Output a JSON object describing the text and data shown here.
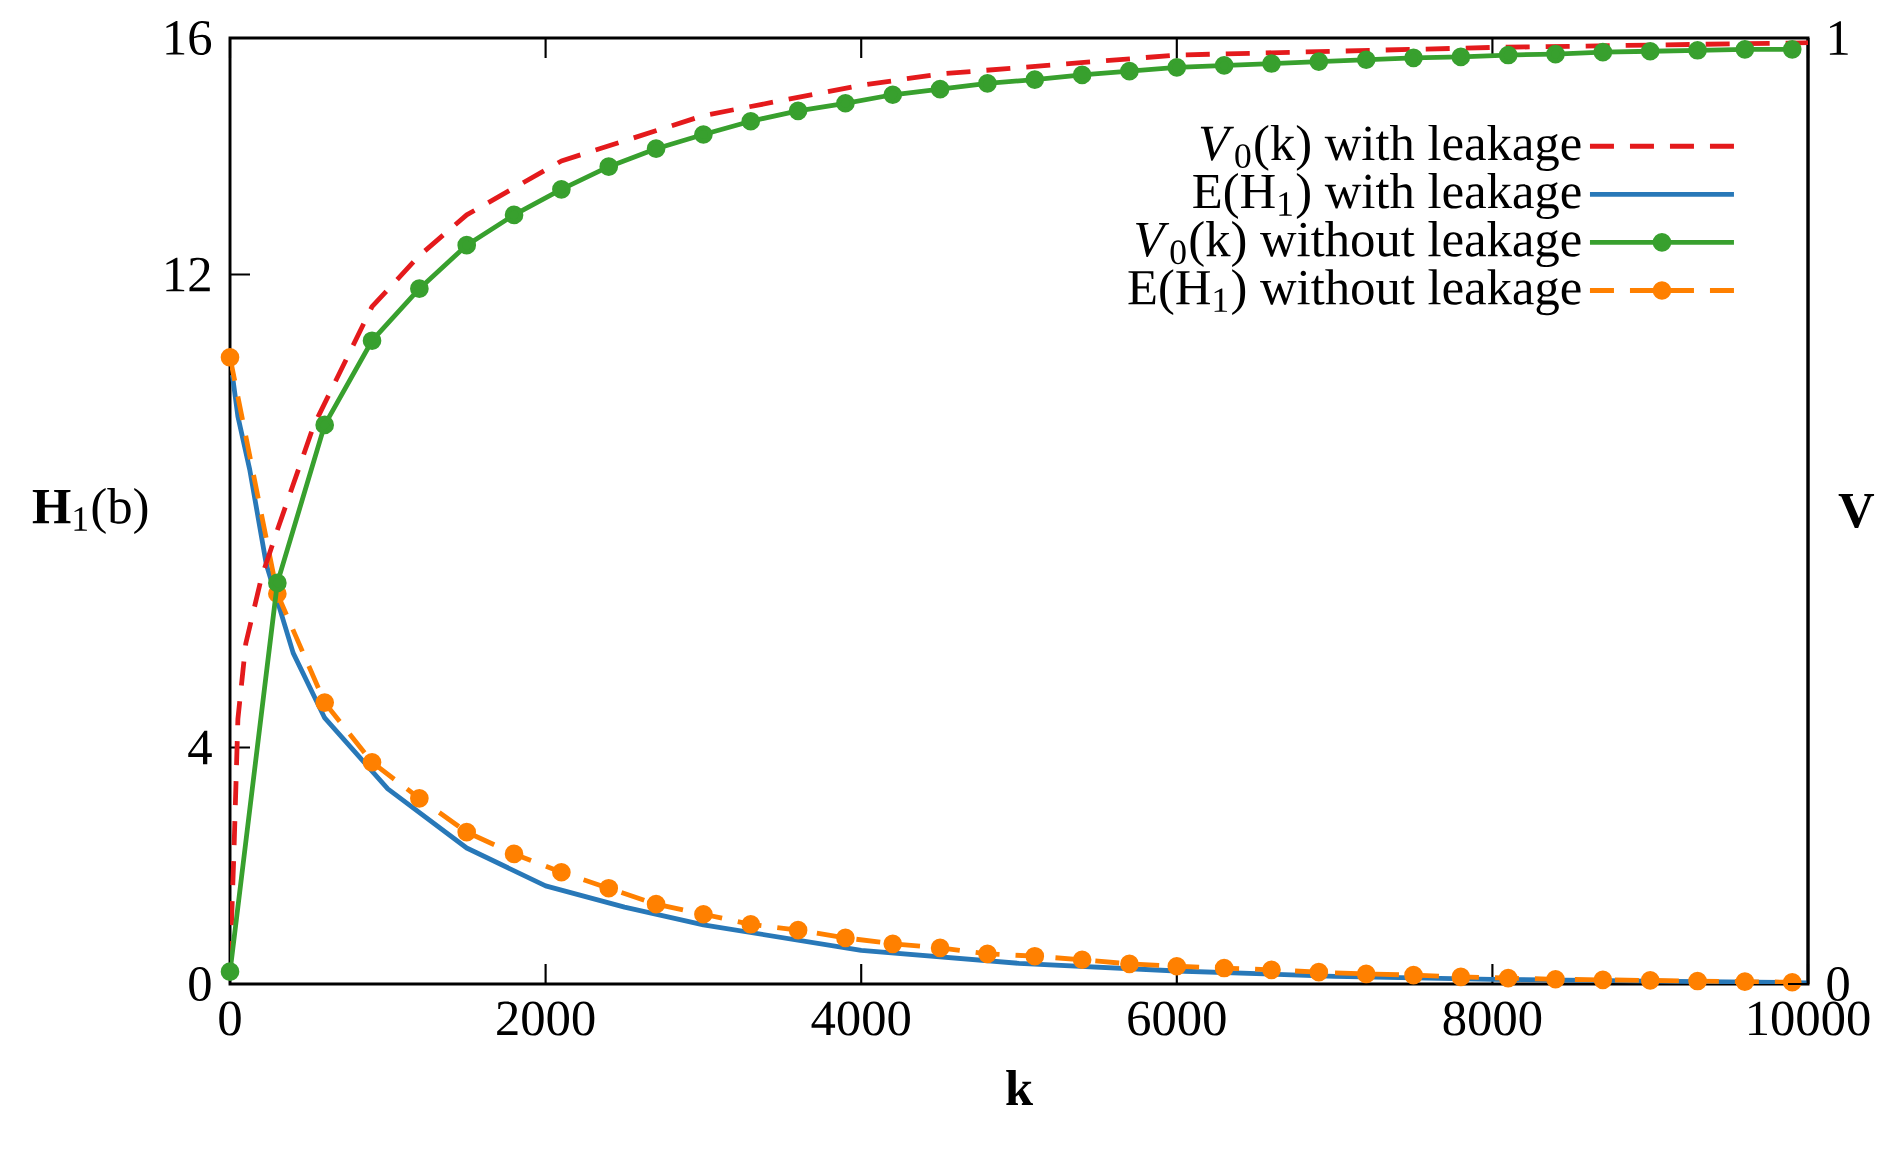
{
  "chart_data": {
    "type": "line",
    "xlabel": "k",
    "ylabel": "**H**$_{1}$(b)",
    "y2label": "V",
    "xlim": [
      0,
      10000
    ],
    "xticks": [
      0,
      2000,
      4000,
      6000,
      8000,
      10000
    ],
    "ylim": [
      0,
      16
    ],
    "yticks": [
      0,
      4,
      12,
      16
    ],
    "y2lim": [
      0,
      1
    ],
    "y2ticks": [
      0,
      1
    ],
    "legend": "top right",
    "series": [
      {
        "name": "*V*$_{0}$(k) with leakage",
        "color": "#e41a1c",
        "axis": "y2",
        "line_style": "dashed",
        "marker": "none",
        "x": [
          0,
          25,
          50,
          100,
          200,
          300,
          530,
          900,
          1200,
          1500,
          2100,
          3000,
          4000,
          4500,
          6000,
          8000,
          10000
        ],
        "values": [
          0.02,
          0.14,
          0.28,
          0.36,
          0.43,
          0.48,
          0.59,
          0.716,
          0.77,
          0.813,
          0.87,
          0.918,
          0.95,
          0.962,
          0.982,
          0.99,
          0.995
        ]
      },
      {
        "name": "E(H$_{1}$) with leakage",
        "color": "#2878b8",
        "line_style": "solid",
        "marker": "none",
        "x": [
          15,
          50,
          125,
          230,
          400,
          600,
          1000,
          1500,
          2000,
          2500,
          3000,
          4000,
          5000,
          6000,
          7000,
          8000,
          9000,
          10000
        ],
        "values": [
          10.3,
          9.6,
          8.7,
          7.1,
          5.6,
          4.5,
          3.3,
          2.3,
          1.66,
          1.3,
          1.0,
          0.57,
          0.35,
          0.22,
          0.13,
          0.08,
          0.05,
          0.02
        ]
      },
      {
        "name": "*V*$_{0}$(k) without leakage",
        "color": "#38a02e",
        "axis": "y2",
        "line_style": "solid",
        "marker": "circle",
        "x": [
          0,
          300,
          600,
          900,
          1200,
          1500,
          1800,
          2100,
          2400,
          2700,
          3000,
          3300,
          3600,
          3900,
          4200,
          4500,
          4800,
          5100,
          5400,
          5700,
          6000,
          6300,
          6600,
          6900,
          7200,
          7500,
          7800,
          8100,
          8400,
          8700,
          9000,
          9300,
          9600,
          9900
        ],
        "values": [
          0.013,
          0.424,
          0.591,
          0.68,
          0.735,
          0.781,
          0.813,
          0.84,
          0.864,
          0.883,
          0.898,
          0.912,
          0.923,
          0.931,
          0.94,
          0.946,
          0.952,
          0.956,
          0.961,
          0.965,
          0.969,
          0.971,
          0.973,
          0.975,
          0.977,
          0.979,
          0.98,
          0.982,
          0.983,
          0.985,
          0.986,
          0.987,
          0.988,
          0.988
        ]
      },
      {
        "name": "E(H$_{1}$) without leakage",
        "color": "#ff8000",
        "line_style": "dashed",
        "marker": "circle",
        "x": [
          0,
          300,
          600,
          900,
          1200,
          1500,
          1800,
          2100,
          2400,
          2700,
          3000,
          3300,
          3600,
          3900,
          4200,
          4500,
          4800,
          5100,
          5400,
          5700,
          6000,
          6300,
          6600,
          6900,
          7200,
          7500,
          7800,
          8100,
          8400,
          8700,
          9000,
          9300,
          9600,
          9900
        ],
        "values": [
          10.6,
          6.6,
          4.76,
          3.75,
          3.14,
          2.57,
          2.2,
          1.89,
          1.62,
          1.35,
          1.18,
          1.01,
          0.91,
          0.78,
          0.68,
          0.61,
          0.51,
          0.47,
          0.41,
          0.34,
          0.3,
          0.27,
          0.24,
          0.2,
          0.17,
          0.15,
          0.12,
          0.1,
          0.08,
          0.07,
          0.06,
          0.05,
          0.04,
          0.03
        ]
      }
    ]
  }
}
